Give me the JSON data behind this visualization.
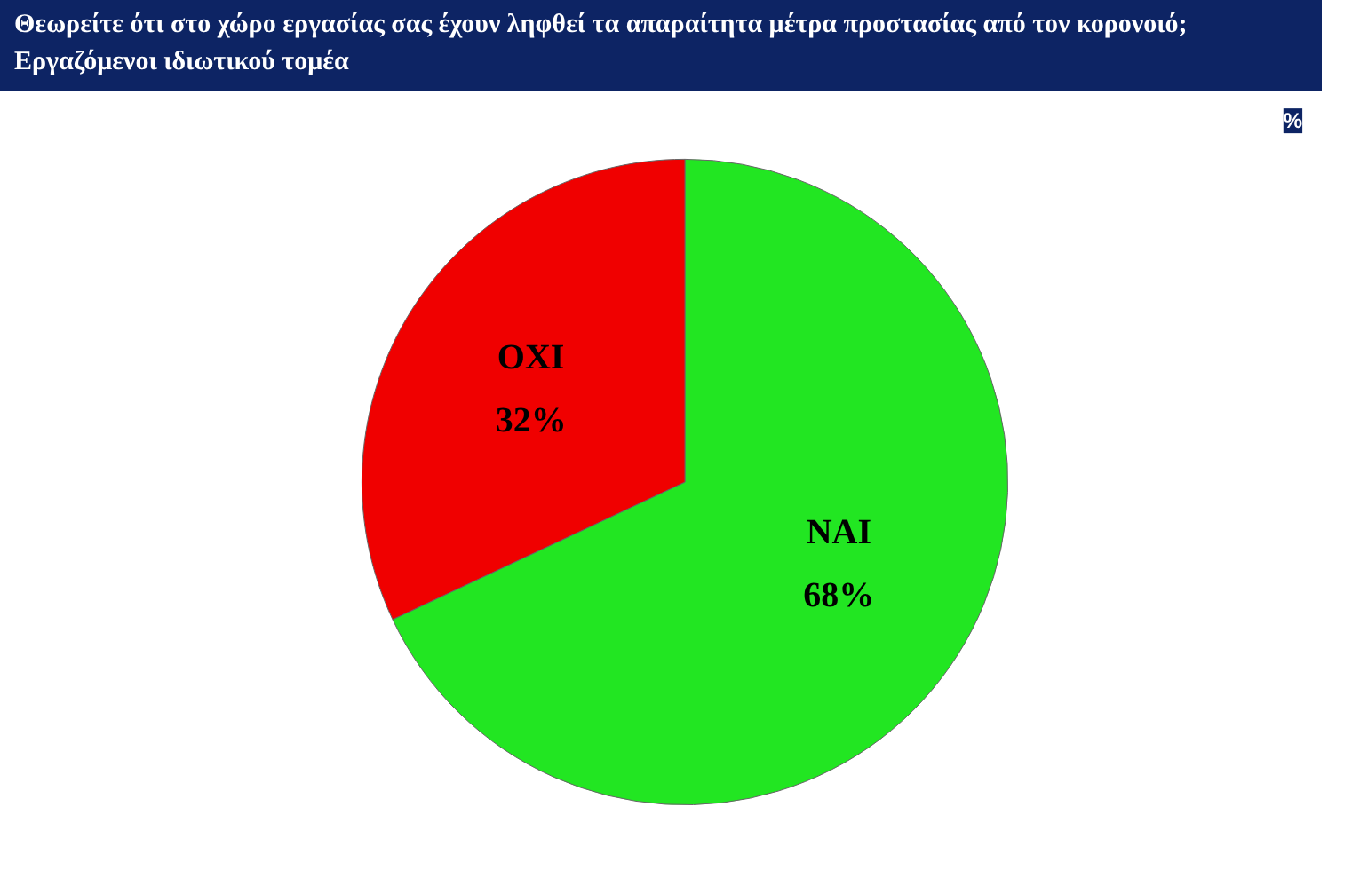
{
  "chart_data": {
    "type": "pie",
    "title": "Θεωρείτε ότι στο χώρο εργασίας σας  έχουν ληφθεί τα απαραίτητα μέτρα προστασίας από τον κορονοιό;",
    "subtitle": "Εργαζόμενοι ιδιωτικού τομέα",
    "annotations": [
      "%"
    ],
    "categories": [
      "ΝΑΙ",
      "ΟΧΙ"
    ],
    "values": [
      68,
      32
    ],
    "colors": [
      "#22e622",
      "#f00000"
    ],
    "value_labels": [
      "68%",
      "32%"
    ]
  }
}
